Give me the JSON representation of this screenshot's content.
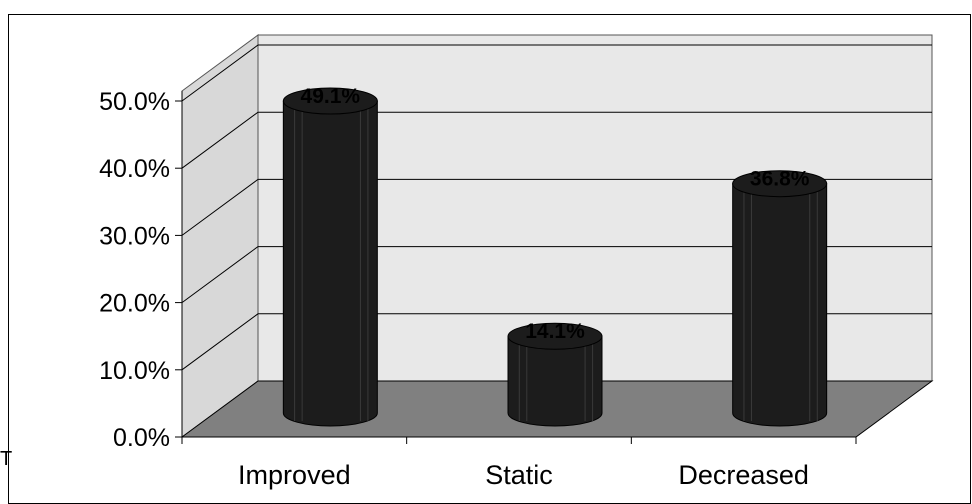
{
  "chart_data": {
    "type": "bar",
    "style": "3d-cylinder",
    "categories": [
      "Improved",
      "Static",
      "Decreased"
    ],
    "values": [
      49.1,
      14.1,
      36.8
    ],
    "data_labels": [
      "49.1%",
      "14.1%",
      "36.8%"
    ],
    "yticks": [
      "0.0%",
      "10.0%",
      "20.0%",
      "30.0%",
      "40.0%",
      "50.0%"
    ],
    "ylim": [
      0,
      50
    ],
    "grid": true,
    "legend": "none",
    "colors": {
      "bar": "#1c1c1c",
      "bar_stripe": "#3a3a3a",
      "wall": "#e8e8e8",
      "floor": "#808080",
      "axis": "#000000"
    }
  },
  "stray_text": "T"
}
